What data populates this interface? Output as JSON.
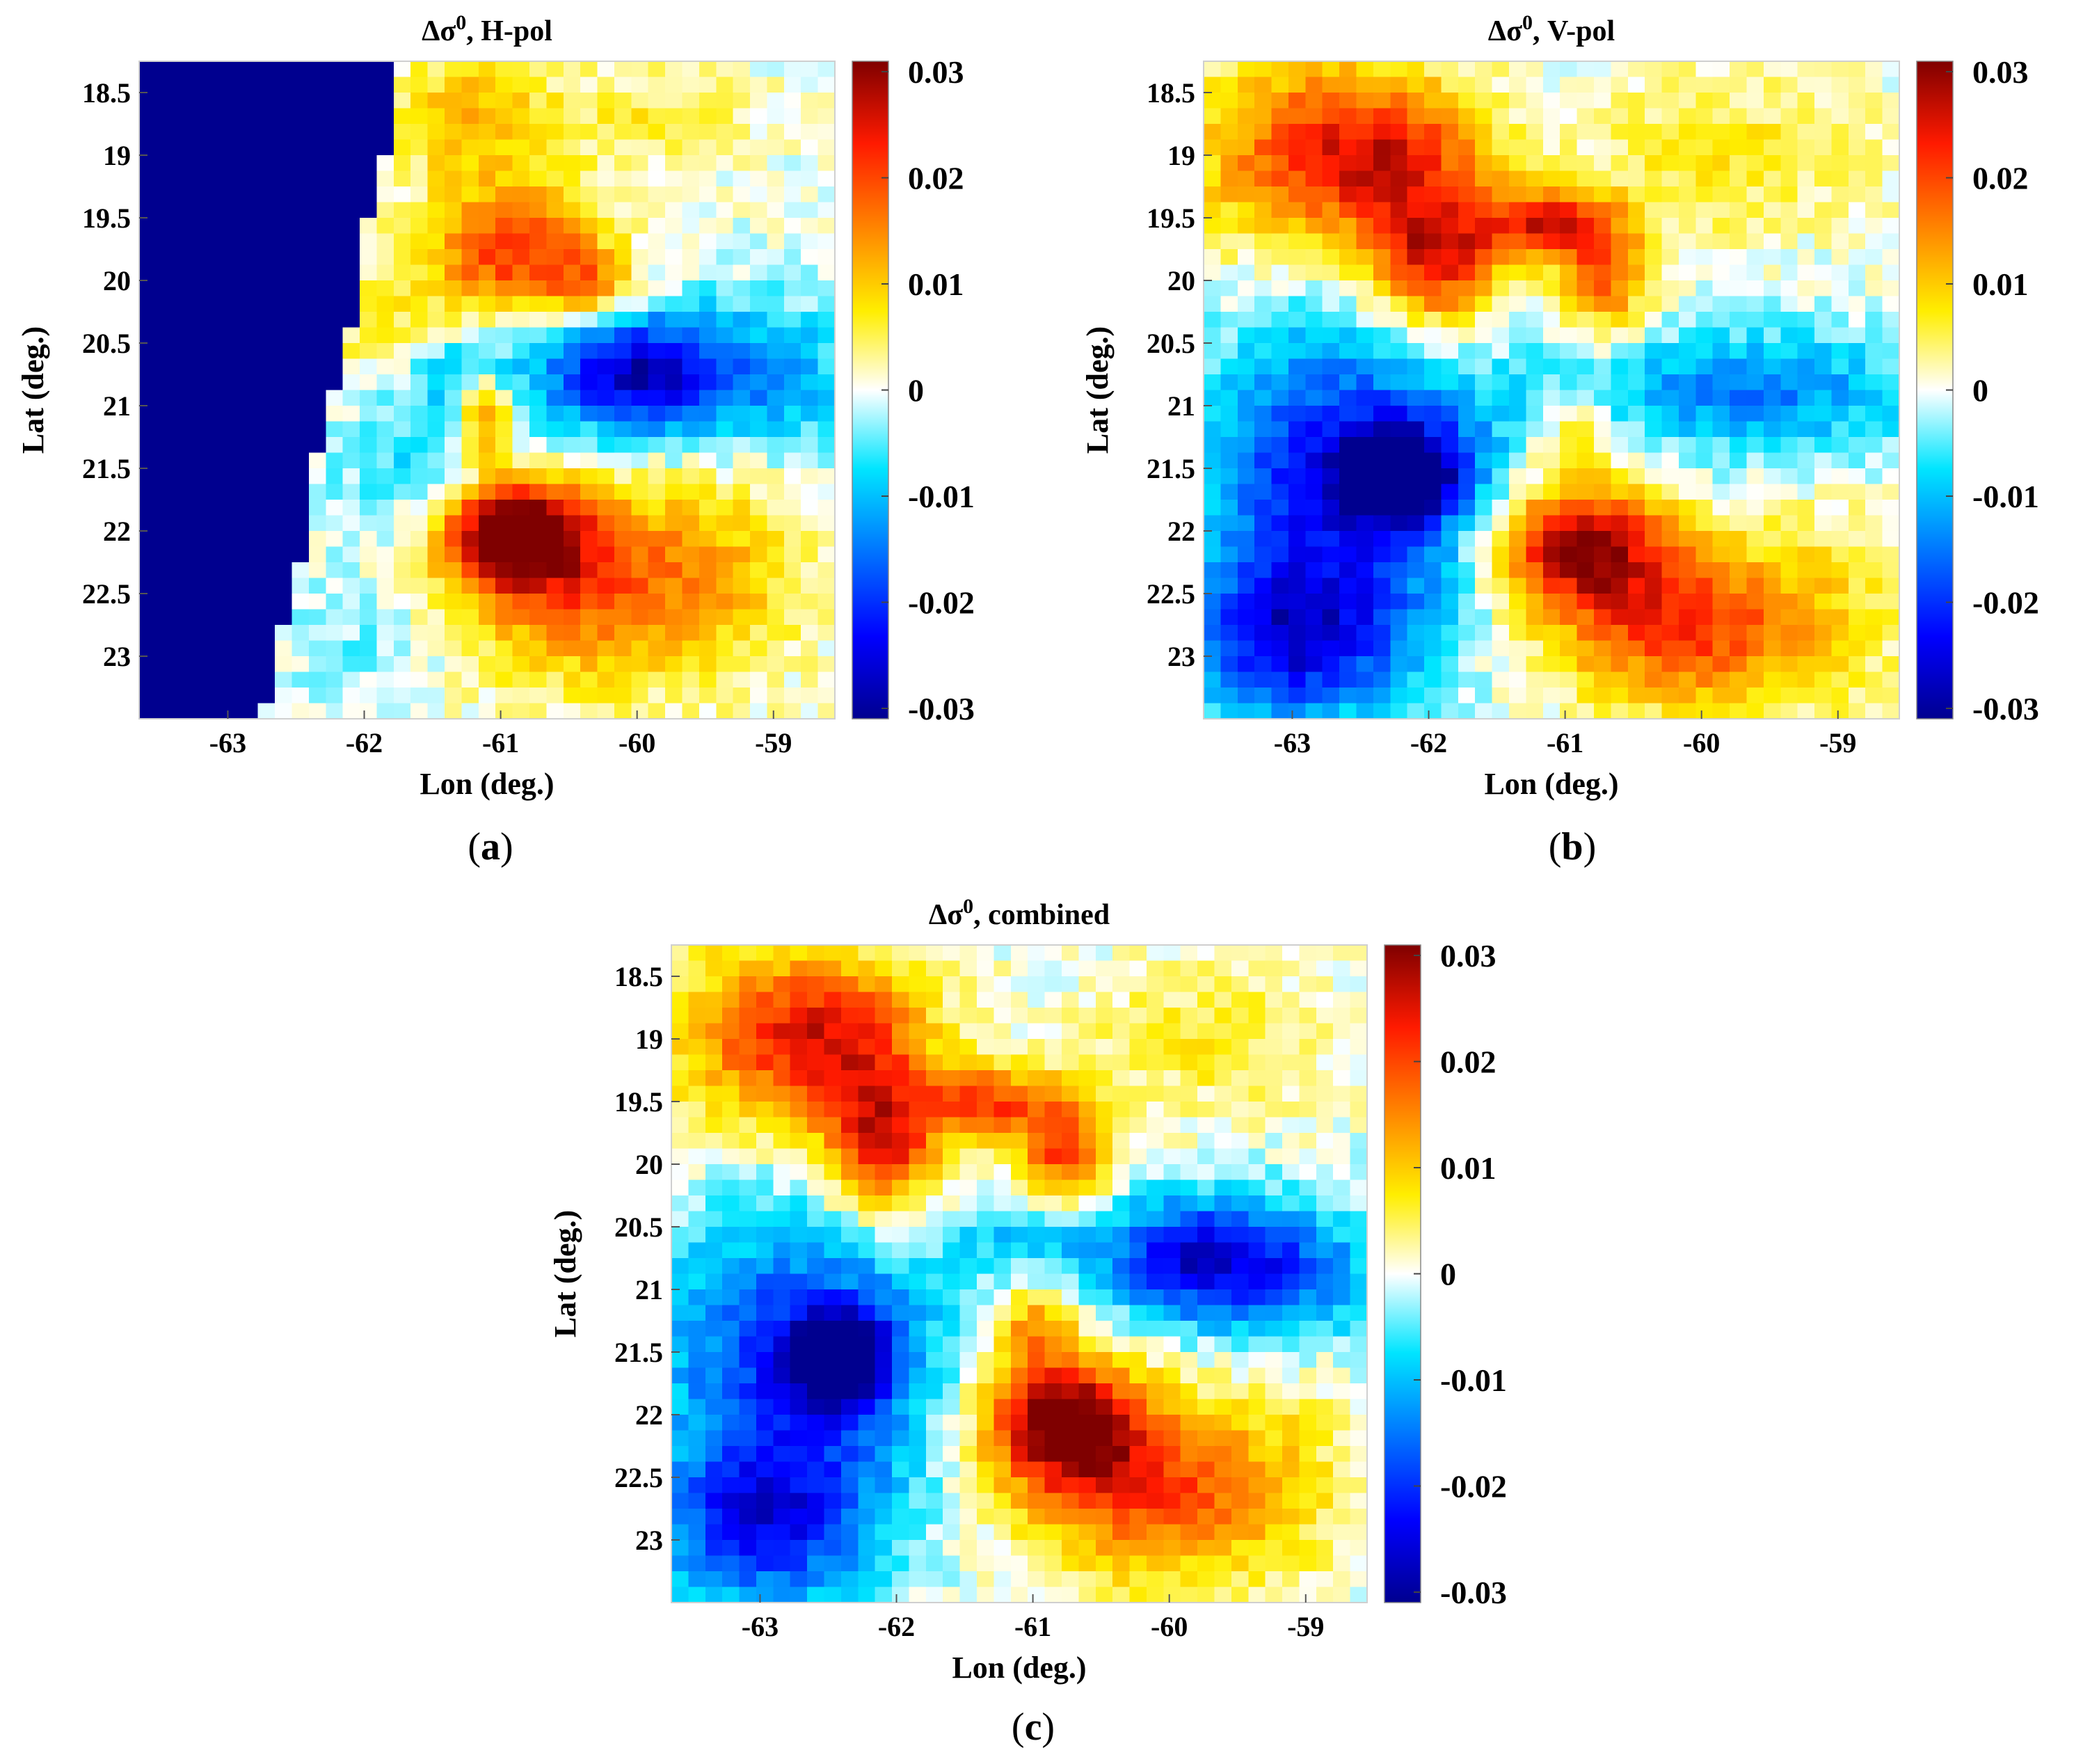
{
  "figure": {
    "panel_labels": [
      "a",
      "b",
      "c"
    ]
  },
  "colorbar": {
    "colormap": "jet",
    "ticks": [
      "0.03",
      "0.02",
      "0.01",
      "0",
      "-0.01",
      "-0.02",
      "-0.03"
    ],
    "colors": {
      "dark_blue": "#00008f",
      "blue": "#0000ff",
      "cyan": "#00e5ff",
      "white": "#ffffff",
      "yellow": "#ffee00",
      "red": "#ff1a00",
      "dark_red": "#7f0000"
    }
  },
  "chart_data": [
    {
      "type": "heatmap",
      "id": "a",
      "title_prefix": "Δσ",
      "title_sup": "0",
      "title_suffix": ", H-pol",
      "xlabel": "Lon (deg.)",
      "ylabel": "Lat (deg.)",
      "xlim": [
        -63.65,
        -58.55
      ],
      "ylim": [
        18.25,
        23.5
      ],
      "xticks": [
        "-63",
        "-62",
        "-61",
        "-60",
        "-59"
      ],
      "yticks": [
        "18.5",
        "19",
        "19.5",
        "20",
        "20.5",
        "21",
        "21.5",
        "22",
        "22.5",
        "23"
      ],
      "clim": [
        -0.03,
        0.03
      ],
      "grid_resolution_deg": 0.125,
      "land_mask": {
        "value": -0.03,
        "boundary_lat": [
          18.25,
          19.0,
          19.5,
          20.0,
          20.5,
          21.0,
          21.5,
          22.0,
          22.5,
          23.0,
          23.5
        ],
        "boundary_lon": [
          -61.7,
          -61.85,
          -61.95,
          -62.05,
          -62.15,
          -62.25,
          -62.35,
          -62.45,
          -62.55,
          -62.65,
          -62.72
        ]
      },
      "features": [
        {
          "lon": -61.8,
          "lat": 20.45,
          "value": 0.007,
          "sigma_lon": 0.4,
          "sigma_lat": 0.35
        },
        {
          "lon": -61.2,
          "lat": 18.7,
          "value": 0.012,
          "sigma_lon": 0.4,
          "sigma_lat": 0.35
        },
        {
          "lon": -60.9,
          "lat": 19.75,
          "value": 0.021,
          "sigma_lon": 0.45,
          "sigma_lat": 0.35
        },
        {
          "lon": -60.3,
          "lat": 20.05,
          "value": 0.012,
          "sigma_lon": 0.25,
          "sigma_lat": 0.2
        },
        {
          "lon": -59.9,
          "lat": 18.7,
          "value": 0.006,
          "sigma_lon": 0.5,
          "sigma_lat": 0.3
        },
        {
          "lon": -61.3,
          "lat": 20.7,
          "value": -0.01,
          "sigma_lon": 0.4,
          "sigma_lat": 0.25
        },
        {
          "lon": -60.0,
          "lat": 20.75,
          "value": -0.026,
          "sigma_lon": 0.45,
          "sigma_lat": 0.35
        },
        {
          "lon": -59.0,
          "lat": 20.8,
          "value": -0.012,
          "sigma_lon": 0.5,
          "sigma_lat": 0.45
        },
        {
          "lon": -61.4,
          "lat": 21.45,
          "value": -0.009,
          "sigma_lon": 0.55,
          "sigma_lat": 0.4
        },
        {
          "lon": -61.1,
          "lat": 21.1,
          "value": 0.02,
          "sigma_lon": 0.15,
          "sigma_lat": 0.25
        },
        {
          "lon": -60.9,
          "lat": 22.0,
          "value": 0.033,
          "sigma_lon": 0.35,
          "sigma_lat": 0.3
        },
        {
          "lon": -60.3,
          "lat": 22.4,
          "value": 0.019,
          "sigma_lon": 0.7,
          "sigma_lat": 0.55
        },
        {
          "lon": -59.2,
          "lat": 22.2,
          "value": 0.005,
          "sigma_lon": 0.4,
          "sigma_lat": 0.7
        },
        {
          "lon": -62.0,
          "lat": 22.9,
          "value": -0.004,
          "sigma_lon": 0.4,
          "sigma_lat": 0.4
        }
      ]
    },
    {
      "type": "heatmap",
      "id": "b",
      "title_prefix": "Δσ",
      "title_sup": "0",
      "title_suffix": ", V-pol",
      "xlabel": "Lon (deg.)",
      "ylabel": "Lat (deg.)",
      "xlim": [
        -63.65,
        -58.55
      ],
      "ylim": [
        18.25,
        23.5
      ],
      "xticks": [
        "-63",
        "-62",
        "-61",
        "-60",
        "-59"
      ],
      "yticks": [
        "18.5",
        "19",
        "19.5",
        "20",
        "20.5",
        "21",
        "21.5",
        "22",
        "22.5",
        "23"
      ],
      "clim": [
        -0.03,
        0.03
      ],
      "grid_resolution_deg": 0.125,
      "features": [
        {
          "lon": -63.1,
          "lat": 19.0,
          "value": 0.012,
          "sigma_lon": 0.55,
          "sigma_lat": 0.6
        },
        {
          "lon": -62.3,
          "lat": 19.0,
          "value": 0.02,
          "sigma_lon": 0.55,
          "sigma_lat": 0.45
        },
        {
          "lon": -61.95,
          "lat": 19.85,
          "value": 0.024,
          "sigma_lon": 0.35,
          "sigma_lat": 0.4
        },
        {
          "lon": -61.1,
          "lat": 19.55,
          "value": 0.022,
          "sigma_lon": 0.35,
          "sigma_lat": 0.2
        },
        {
          "lon": -60.7,
          "lat": 20.0,
          "value": 0.018,
          "sigma_lon": 0.22,
          "sigma_lat": 0.3
        },
        {
          "lon": -59.8,
          "lat": 19.0,
          "value": 0.007,
          "sigma_lon": 0.7,
          "sigma_lat": 0.45
        },
        {
          "lon": -62.6,
          "lat": 21.6,
          "value": -0.022,
          "sigma_lon": 0.8,
          "sigma_lat": 0.9
        },
        {
          "lon": -62.2,
          "lat": 21.55,
          "value": -0.029,
          "sigma_lon": 0.3,
          "sigma_lat": 0.25
        },
        {
          "lon": -63.0,
          "lat": 22.9,
          "value": -0.02,
          "sigma_lon": 0.55,
          "sigma_lat": 0.45
        },
        {
          "lon": -59.6,
          "lat": 20.9,
          "value": -0.014,
          "sigma_lon": 0.9,
          "sigma_lat": 0.35
        },
        {
          "lon": -60.9,
          "lat": 21.25,
          "value": 0.01,
          "sigma_lon": 0.22,
          "sigma_lat": 0.2
        },
        {
          "lon": -60.9,
          "lat": 22.1,
          "value": 0.028,
          "sigma_lon": 0.45,
          "sigma_lat": 0.35
        },
        {
          "lon": -60.1,
          "lat": 22.75,
          "value": 0.021,
          "sigma_lon": 0.7,
          "sigma_lat": 0.45
        },
        {
          "lon": -59.0,
          "lat": 22.6,
          "value": 0.004,
          "sigma_lon": 0.35,
          "sigma_lat": 0.7
        }
      ]
    },
    {
      "type": "heatmap",
      "id": "c",
      "title_prefix": "Δσ",
      "title_sup": "0",
      "title_suffix": ", combined",
      "xlabel": "Lon (deg.)",
      "ylabel": "Lat (deg.)",
      "xlim": [
        -63.65,
        -58.55
      ],
      "ylim": [
        18.25,
        23.5
      ],
      "xticks": [
        "-63",
        "-62",
        "-61",
        "-60",
        "-59"
      ],
      "yticks": [
        "18.5",
        "19",
        "19.5",
        "20",
        "20.5",
        "21",
        "21.5",
        "22",
        "22.5",
        "23"
      ],
      "clim": [
        -0.03,
        0.03
      ],
      "grid_resolution_deg": 0.125,
      "features": [
        {
          "lon": -63.1,
          "lat": 19.0,
          "value": 0.011,
          "sigma_lon": 0.55,
          "sigma_lat": 0.6
        },
        {
          "lon": -62.4,
          "lat": 19.0,
          "value": 0.019,
          "sigma_lon": 0.5,
          "sigma_lat": 0.45
        },
        {
          "lon": -62.1,
          "lat": 19.85,
          "value": 0.024,
          "sigma_lon": 0.3,
          "sigma_lat": 0.4
        },
        {
          "lon": -61.3,
          "lat": 19.5,
          "value": 0.018,
          "sigma_lon": 0.35,
          "sigma_lat": 0.2
        },
        {
          "lon": -60.75,
          "lat": 19.9,
          "value": 0.02,
          "sigma_lon": 0.25,
          "sigma_lat": 0.3
        },
        {
          "lon": -59.7,
          "lat": 19.0,
          "value": 0.006,
          "sigma_lon": 0.7,
          "sigma_lat": 0.45
        },
        {
          "lon": -62.7,
          "lat": 21.6,
          "value": -0.02,
          "sigma_lon": 0.75,
          "sigma_lat": 0.9
        },
        {
          "lon": -62.4,
          "lat": 21.55,
          "value": -0.028,
          "sigma_lon": 0.25,
          "sigma_lat": 0.25
        },
        {
          "lon": -63.0,
          "lat": 22.9,
          "value": -0.018,
          "sigma_lon": 0.55,
          "sigma_lat": 0.45
        },
        {
          "lon": -59.8,
          "lat": 20.75,
          "value": -0.023,
          "sigma_lon": 0.5,
          "sigma_lat": 0.35
        },
        {
          "lon": -59.0,
          "lat": 20.9,
          "value": -0.012,
          "sigma_lon": 0.5,
          "sigma_lat": 0.4
        },
        {
          "lon": -61.0,
          "lat": 20.55,
          "value": -0.008,
          "sigma_lon": 0.4,
          "sigma_lat": 0.2
        },
        {
          "lon": -60.95,
          "lat": 21.3,
          "value": 0.014,
          "sigma_lon": 0.2,
          "sigma_lat": 0.22
        },
        {
          "lon": -60.8,
          "lat": 22.05,
          "value": 0.031,
          "sigma_lon": 0.4,
          "sigma_lat": 0.35
        },
        {
          "lon": -60.1,
          "lat": 22.6,
          "value": 0.02,
          "sigma_lon": 0.65,
          "sigma_lat": 0.5
        },
        {
          "lon": -59.1,
          "lat": 22.4,
          "value": 0.004,
          "sigma_lon": 0.35,
          "sigma_lat": 0.7
        }
      ]
    }
  ]
}
